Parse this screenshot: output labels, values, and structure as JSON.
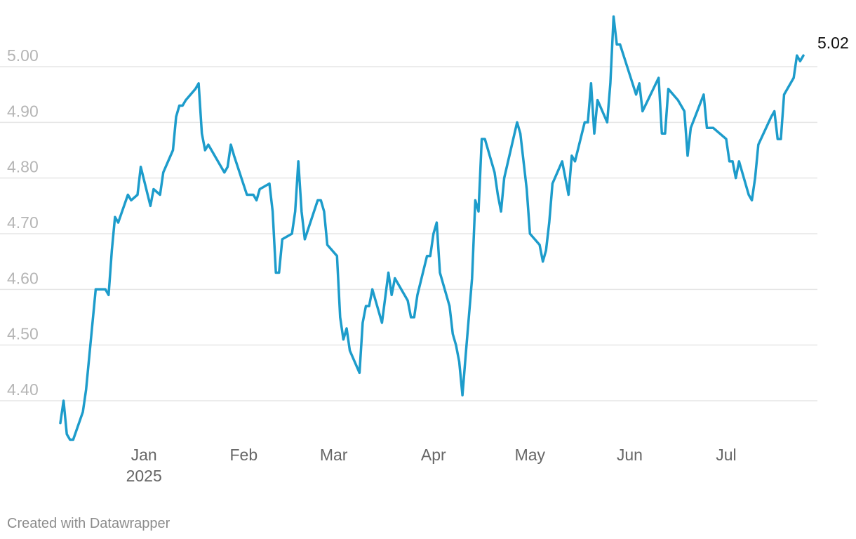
{
  "chart_data": {
    "type": "line",
    "title": "",
    "xlabel": "",
    "ylabel": "",
    "ylim": [
      4.3,
      5.07
    ],
    "y_ticks": [
      "4.40",
      "4.50",
      "4.60",
      "4.70",
      "4.80",
      "4.90",
      "5.00"
    ],
    "y_tick_values": [
      4.4,
      4.5,
      4.6,
      4.7,
      4.8,
      4.9,
      5.0
    ],
    "x_ticks": [
      {
        "label": "Jan",
        "sublabel": "2025",
        "date": "2025-01-01"
      },
      {
        "label": "Feb",
        "sublabel": "",
        "date": "2025-02-01"
      },
      {
        "label": "Mar",
        "sublabel": "",
        "date": "2025-03-01"
      },
      {
        "label": "Apr",
        "sublabel": "",
        "date": "2025-04-01"
      },
      {
        "label": "May",
        "sublabel": "",
        "date": "2025-05-01"
      },
      {
        "label": "Jun",
        "sublabel": "",
        "date": "2025-06-01"
      },
      {
        "label": "Jul",
        "sublabel": "",
        "date": "2025-07-01"
      }
    ],
    "xlim": [
      "2024-12-06",
      "2025-07-22"
    ],
    "grid": true,
    "legend": "none",
    "series": [
      {
        "color": "#1d9ccb",
        "end_label": "5.02",
        "points": [
          [
            "2024-12-06",
            4.36
          ],
          [
            "2024-12-07",
            4.4
          ],
          [
            "2024-12-08",
            4.34
          ],
          [
            "2024-12-09",
            4.33
          ],
          [
            "2024-12-10",
            4.33
          ],
          [
            "2024-12-13",
            4.38
          ],
          [
            "2024-12-14",
            4.42
          ],
          [
            "2024-12-17",
            4.6
          ],
          [
            "2024-12-19",
            4.6
          ],
          [
            "2024-12-20",
            4.6
          ],
          [
            "2024-12-21",
            4.59
          ],
          [
            "2024-12-22",
            4.67
          ],
          [
            "2024-12-23",
            4.73
          ],
          [
            "2024-12-24",
            4.72
          ],
          [
            "2024-12-27",
            4.77
          ],
          [
            "2024-12-28",
            4.76
          ],
          [
            "2024-12-30",
            4.77
          ],
          [
            "2024-12-31",
            4.82
          ],
          [
            "2025-01-03",
            4.75
          ],
          [
            "2025-01-04",
            4.78
          ],
          [
            "2025-01-06",
            4.77
          ],
          [
            "2025-01-07",
            4.81
          ],
          [
            "2025-01-10",
            4.85
          ],
          [
            "2025-01-11",
            4.91
          ],
          [
            "2025-01-12",
            4.93
          ],
          [
            "2025-01-13",
            4.93
          ],
          [
            "2025-01-14",
            4.94
          ],
          [
            "2025-01-17",
            4.96
          ],
          [
            "2025-01-18",
            4.97
          ],
          [
            "2025-01-19",
            4.88
          ],
          [
            "2025-01-20",
            4.85
          ],
          [
            "2025-01-21",
            4.86
          ],
          [
            "2025-01-26",
            4.81
          ],
          [
            "2025-01-27",
            4.82
          ],
          [
            "2025-01-28",
            4.86
          ],
          [
            "2025-01-29",
            4.84
          ],
          [
            "2025-02-02",
            4.77
          ],
          [
            "2025-02-03",
            4.77
          ],
          [
            "2025-02-04",
            4.77
          ],
          [
            "2025-02-05",
            4.76
          ],
          [
            "2025-02-06",
            4.78
          ],
          [
            "2025-02-09",
            4.79
          ],
          [
            "2025-02-10",
            4.74
          ],
          [
            "2025-02-11",
            4.63
          ],
          [
            "2025-02-12",
            4.63
          ],
          [
            "2025-02-13",
            4.69
          ],
          [
            "2025-02-16",
            4.7
          ],
          [
            "2025-02-17",
            4.74
          ],
          [
            "2025-02-18",
            4.83
          ],
          [
            "2025-02-19",
            4.74
          ],
          [
            "2025-02-20",
            4.69
          ],
          [
            "2025-02-24",
            4.76
          ],
          [
            "2025-02-25",
            4.76
          ],
          [
            "2025-02-26",
            4.74
          ],
          [
            "2025-02-27",
            4.68
          ],
          [
            "2025-03-02",
            4.66
          ],
          [
            "2025-03-03",
            4.55
          ],
          [
            "2025-03-04",
            4.51
          ],
          [
            "2025-03-05",
            4.53
          ],
          [
            "2025-03-06",
            4.49
          ],
          [
            "2025-03-09",
            4.45
          ],
          [
            "2025-03-10",
            4.54
          ],
          [
            "2025-03-11",
            4.57
          ],
          [
            "2025-03-12",
            4.57
          ],
          [
            "2025-03-13",
            4.6
          ],
          [
            "2025-03-16",
            4.54
          ],
          [
            "2025-03-18",
            4.63
          ],
          [
            "2025-03-19",
            4.59
          ],
          [
            "2025-03-20",
            4.62
          ],
          [
            "2025-03-23",
            4.59
          ],
          [
            "2025-03-24",
            4.58
          ],
          [
            "2025-03-25",
            4.55
          ],
          [
            "2025-03-26",
            4.55
          ],
          [
            "2025-03-27",
            4.59
          ],
          [
            "2025-03-30",
            4.66
          ],
          [
            "2025-03-31",
            4.66
          ],
          [
            "2025-04-01",
            4.7
          ],
          [
            "2025-04-02",
            4.72
          ],
          [
            "2025-04-03",
            4.63
          ],
          [
            "2025-04-06",
            4.57
          ],
          [
            "2025-04-07",
            4.52
          ],
          [
            "2025-04-08",
            4.5
          ],
          [
            "2025-04-09",
            4.47
          ],
          [
            "2025-04-10",
            4.41
          ],
          [
            "2025-04-11",
            4.48
          ],
          [
            "2025-04-13",
            4.62
          ],
          [
            "2025-04-14",
            4.76
          ],
          [
            "2025-04-15",
            4.74
          ],
          [
            "2025-04-16",
            4.87
          ],
          [
            "2025-04-17",
            4.87
          ],
          [
            "2025-04-20",
            4.81
          ],
          [
            "2025-04-21",
            4.77
          ],
          [
            "2025-04-22",
            4.74
          ],
          [
            "2025-04-23",
            4.8
          ],
          [
            "2025-04-27",
            4.9
          ],
          [
            "2025-04-28",
            4.88
          ],
          [
            "2025-04-30",
            4.78
          ],
          [
            "2025-05-01",
            4.7
          ],
          [
            "2025-05-04",
            4.68
          ],
          [
            "2025-05-05",
            4.65
          ],
          [
            "2025-05-06",
            4.67
          ],
          [
            "2025-05-07",
            4.72
          ],
          [
            "2025-05-08",
            4.79
          ],
          [
            "2025-05-11",
            4.83
          ],
          [
            "2025-05-12",
            4.8
          ],
          [
            "2025-05-13",
            4.77
          ],
          [
            "2025-05-14",
            4.84
          ],
          [
            "2025-05-15",
            4.83
          ],
          [
            "2025-05-18",
            4.9
          ],
          [
            "2025-05-19",
            4.9
          ],
          [
            "2025-05-20",
            4.97
          ],
          [
            "2025-05-21",
            4.88
          ],
          [
            "2025-05-22",
            4.94
          ],
          [
            "2025-05-25",
            4.9
          ],
          [
            "2025-05-26",
            4.97
          ],
          [
            "2025-05-27",
            5.09
          ],
          [
            "2025-05-28",
            5.04
          ],
          [
            "2025-05-29",
            5.04
          ],
          [
            "2025-06-03",
            4.95
          ],
          [
            "2025-06-04",
            4.97
          ],
          [
            "2025-06-05",
            4.92
          ],
          [
            "2025-06-10",
            4.98
          ],
          [
            "2025-06-11",
            4.88
          ],
          [
            "2025-06-12",
            4.88
          ],
          [
            "2025-06-13",
            4.96
          ],
          [
            "2025-06-16",
            4.94
          ],
          [
            "2025-06-18",
            4.92
          ],
          [
            "2025-06-19",
            4.84
          ],
          [
            "2025-06-20",
            4.89
          ],
          [
            "2025-06-24",
            4.95
          ],
          [
            "2025-06-25",
            4.89
          ],
          [
            "2025-06-26",
            4.89
          ],
          [
            "2025-06-27",
            4.89
          ],
          [
            "2025-07-01",
            4.87
          ],
          [
            "2025-07-02",
            4.83
          ],
          [
            "2025-07-03",
            4.83
          ],
          [
            "2025-07-04",
            4.8
          ],
          [
            "2025-07-05",
            4.83
          ],
          [
            "2025-07-08",
            4.77
          ],
          [
            "2025-07-09",
            4.76
          ],
          [
            "2025-07-10",
            4.8
          ],
          [
            "2025-07-11",
            4.86
          ],
          [
            "2025-07-15",
            4.91
          ],
          [
            "2025-07-16",
            4.92
          ],
          [
            "2025-07-17",
            4.87
          ],
          [
            "2025-07-18",
            4.87
          ],
          [
            "2025-07-19",
            4.95
          ],
          [
            "2025-07-21",
            4.97
          ],
          [
            "2025-07-22",
            4.98
          ],
          [
            "2025-07-23",
            5.02
          ],
          [
            "2025-07-24",
            5.01
          ],
          [
            "2025-07-25",
            5.02
          ]
        ]
      }
    ]
  },
  "credit": "Created with Datawrapper"
}
